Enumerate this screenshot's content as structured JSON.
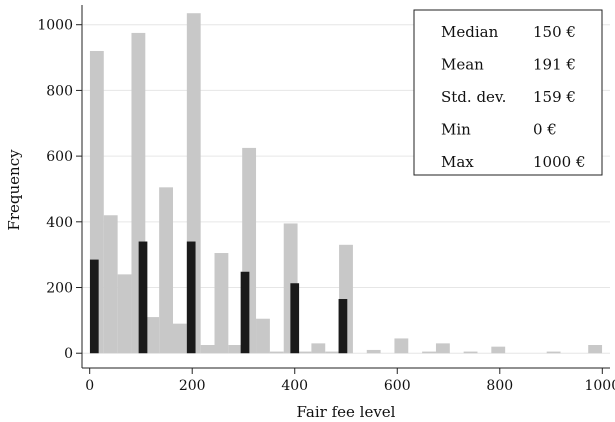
{
  "chart_data": {
    "type": "bar",
    "xlabel": "Fair fee level",
    "ylabel": "Frequency",
    "xlim": [
      -15,
      1015
    ],
    "ylim": [
      -45,
      1060
    ],
    "grid": true,
    "x_ticks": [
      0,
      200,
      400,
      600,
      800,
      1000
    ],
    "y_ticks": [
      0,
      200,
      400,
      600,
      800,
      1000
    ],
    "series": [
      {
        "color": "#c8c8c8",
        "bin_width": 27,
        "points": [
          {
            "x": 14,
            "y": 920
          },
          {
            "x": 41,
            "y": 420
          },
          {
            "x": 68,
            "y": 240
          },
          {
            "x": 95,
            "y": 975
          },
          {
            "x": 122,
            "y": 110
          },
          {
            "x": 149,
            "y": 505
          },
          {
            "x": 176,
            "y": 90
          },
          {
            "x": 203,
            "y": 1035
          },
          {
            "x": 230,
            "y": 25
          },
          {
            "x": 257,
            "y": 305
          },
          {
            "x": 284,
            "y": 25
          },
          {
            "x": 311,
            "y": 625
          },
          {
            "x": 338,
            "y": 105
          },
          {
            "x": 365,
            "y": 5
          },
          {
            "x": 392,
            "y": 395
          },
          {
            "x": 419,
            "y": 5
          },
          {
            "x": 446,
            "y": 30
          },
          {
            "x": 473,
            "y": 5
          },
          {
            "x": 500,
            "y": 330
          },
          {
            "x": 554,
            "y": 10
          },
          {
            "x": 608,
            "y": 45
          },
          {
            "x": 662,
            "y": 5
          },
          {
            "x": 689,
            "y": 30
          },
          {
            "x": 743,
            "y": 5
          },
          {
            "x": 797,
            "y": 20
          },
          {
            "x": 905,
            "y": 5
          },
          {
            "x": 986,
            "y": 25
          }
        ]
      },
      {
        "color": "#1a1a1a",
        "bin_width": 17,
        "points": [
          {
            "x": 9,
            "y": 285
          },
          {
            "x": 104,
            "y": 340
          },
          {
            "x": 198,
            "y": 340
          },
          {
            "x": 303,
            "y": 248
          },
          {
            "x": 400,
            "y": 213
          },
          {
            "x": 494,
            "y": 165
          }
        ]
      }
    ],
    "stats": [
      {
        "label": "Median",
        "value": "150 €"
      },
      {
        "label": "Mean",
        "value": "191 €"
      },
      {
        "label": "Std. dev.",
        "value": "159 €"
      },
      {
        "label": "Min",
        "value": "0 €"
      },
      {
        "label": "Max",
        "value": "1000 €"
      }
    ],
    "stats_placement": "top-right"
  }
}
